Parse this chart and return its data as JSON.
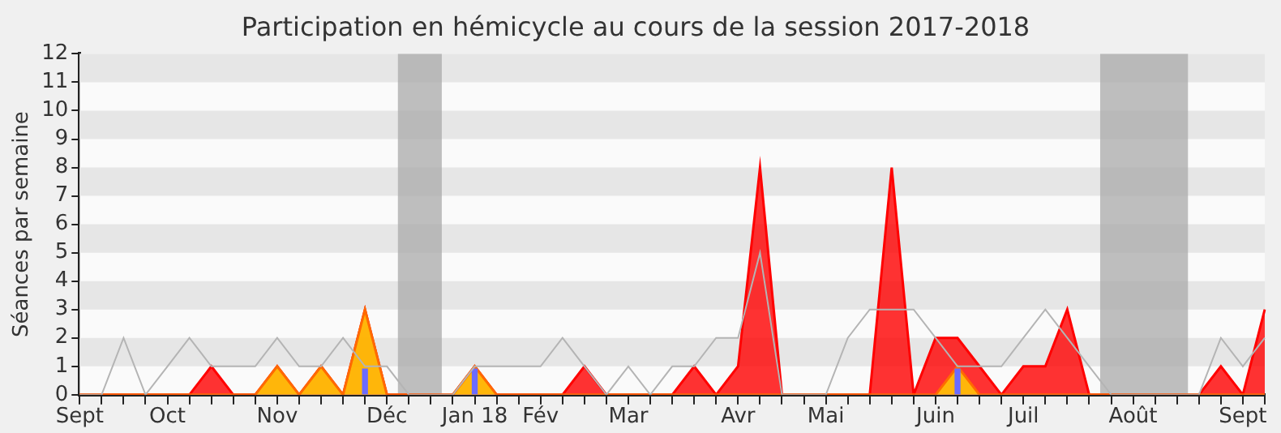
{
  "chart_data": {
    "type": "area",
    "title": "Participation en hémicycle au cours de la session 2017-2018",
    "ylabel": "Séances par semaine",
    "categories": [
      "Sept",
      null,
      null,
      null,
      "Oct",
      null,
      null,
      null,
      null,
      "Nov",
      null,
      null,
      null,
      null,
      "Déc",
      null,
      null,
      null,
      "Jan 18",
      null,
      null,
      "Fév",
      null,
      null,
      null,
      "Mar",
      null,
      null,
      null,
      null,
      "Avr",
      null,
      null,
      null,
      "Mai",
      null,
      null,
      null,
      null,
      "Juin",
      null,
      null,
      null,
      "Juil",
      null,
      null,
      null,
      null,
      "Août",
      null,
      null,
      null,
      null,
      "Sept",
      null
    ],
    "ylim": [
      0,
      12
    ],
    "yticks": [
      0,
      1,
      2,
      3,
      4,
      5,
      6,
      7,
      8,
      9,
      10,
      11,
      12
    ],
    "legend": false,
    "series": [
      {
        "type": "line",
        "color": "#b4b4b4",
        "values": [
          0,
          0,
          2,
          0,
          1,
          2,
          1,
          1,
          1,
          2,
          1,
          1,
          2,
          1,
          1,
          0,
          0,
          0,
          1,
          1,
          1,
          1,
          2,
          1,
          0,
          1,
          0,
          1,
          1,
          2,
          2,
          5,
          0,
          0,
          0,
          2,
          3,
          3,
          3,
          2,
          1,
          1,
          1,
          2,
          3,
          2,
          1,
          0,
          0,
          0,
          0,
          0,
          2,
          1,
          2
        ]
      },
      {
        "color": "#ff0000",
        "values": [
          0,
          0,
          0,
          0,
          0,
          0,
          1,
          0,
          0,
          1,
          0,
          1,
          0,
          3,
          0,
          0,
          0,
          0,
          1,
          0,
          0,
          0,
          0,
          1,
          0,
          0,
          0,
          0,
          1,
          0,
          1,
          8,
          0,
          0,
          0,
          0,
          0,
          8,
          0,
          2,
          2,
          1,
          0,
          1,
          1,
          3,
          0,
          0,
          0,
          0,
          0,
          0,
          1,
          0,
          3
        ]
      },
      {
        "color": "#ffd700",
        "values": [
          0,
          0,
          0,
          0,
          0,
          0,
          0,
          0,
          0,
          1,
          0,
          1,
          0,
          3,
          0,
          0,
          0,
          0,
          1,
          0,
          0,
          0,
          0,
          0,
          0,
          0,
          0,
          0,
          0,
          0,
          0,
          0,
          0,
          0,
          0,
          0,
          0,
          0,
          0,
          0,
          1,
          0,
          0,
          0,
          0,
          0,
          0,
          0,
          0,
          0,
          0,
          0,
          0,
          0,
          0
        ]
      },
      {
        "type": "bar",
        "color": "#6b6bff",
        "values": [
          null,
          null,
          null,
          null,
          null,
          null,
          null,
          null,
          null,
          null,
          null,
          null,
          null,
          0.9,
          null,
          null,
          null,
          null,
          0.9,
          null,
          null,
          null,
          null,
          null,
          null,
          null,
          null,
          null,
          null,
          null,
          null,
          null,
          null,
          null,
          null,
          null,
          null,
          null,
          null,
          null,
          0.9,
          null,
          null,
          null,
          null,
          null,
          null,
          null,
          null,
          null,
          null,
          null,
          null,
          null,
          null
        ]
      }
    ]
  }
}
